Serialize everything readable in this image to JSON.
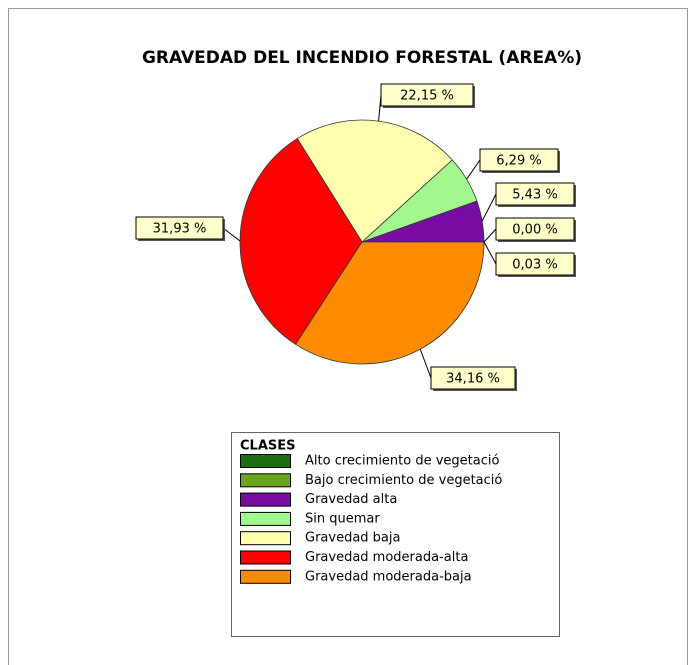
{
  "chart_data": {
    "type": "pie",
    "title": "GRAVEDAD DEL INCENDIO FORESTAL (AREA%)",
    "legend_title": "CLASES",
    "categories": [
      "Alto crecimiento de vegetació",
      "Bajo crecimiento de vegetació",
      "Gravedad alta",
      "Sin quemar",
      "Gravedad baja",
      "Gravedad moderada-alta",
      "Gravedad moderada-baja"
    ],
    "values": [
      0.0,
      0.03,
      5.43,
      6.29,
      22.15,
      31.93,
      34.16
    ],
    "value_labels": [
      "0,00 %",
      "0,03 %",
      "5,43 %",
      "6,29 %",
      "22,15 %",
      "31,93 %",
      "34,16 %"
    ],
    "colors": [
      "#1c6e12",
      "#6ba51c",
      "#7a0ca6",
      "#a3f78f",
      "#ffffb0",
      "#ff0000",
      "#ff8c00"
    ]
  }
}
